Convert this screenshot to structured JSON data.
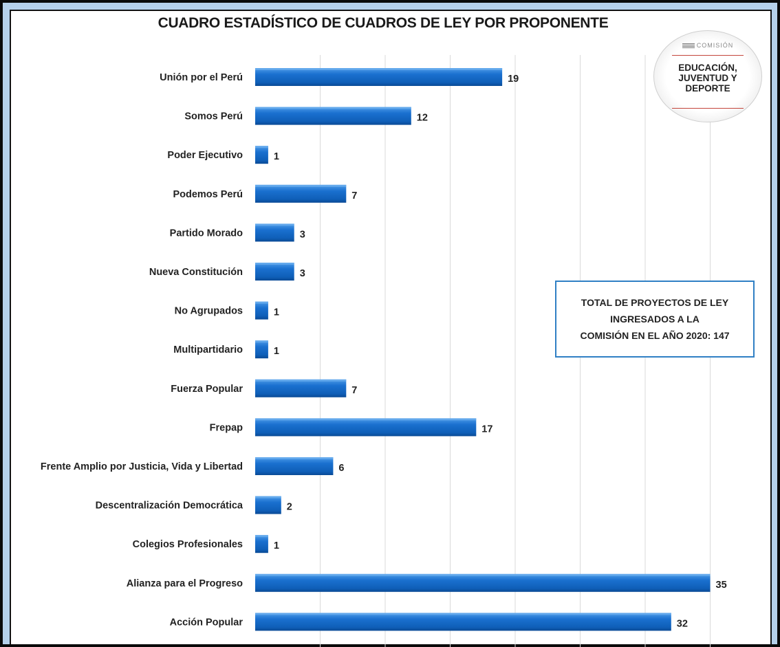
{
  "logo": {
    "top_text": "COMISIÓN",
    "line1": "EDUCACIÓN,",
    "line2": "JUVENTUD Y",
    "line3": "DEPORTE"
  },
  "total_box": {
    "line1": "TOTAL DE PROYECTOS DE LEY",
    "line2": "INGRESADOS A LA",
    "line3": "COMISIÓN EN EL AÑO 2020: 147"
  },
  "colors": {
    "bar_top": "#3f8fe0",
    "bar_main": "#1167c9",
    "bar_bottom": "#0a4a95",
    "frame_bg": "#b5d0ea",
    "box_border": "#2f7fc4"
  },
  "chart_data": {
    "type": "bar",
    "orientation": "horizontal",
    "title": "CUADRO ESTADÍSTICO DE CUADROS DE LEY POR PROPONENTE",
    "categories": [
      "Unión por el Perú",
      "Somos Perú",
      "Poder Ejecutivo",
      "Podemos Perú",
      "Partido Morado",
      "Nueva Constitución",
      "No Agrupados",
      "Multipartidario",
      "Fuerza Popular",
      "Frepap",
      "Frente Amplio por Justicia, Vida y Libertad",
      "Descentralización Democrática",
      "Colegios Profesionales",
      "Alianza para el Progreso",
      "Acción Popular"
    ],
    "values": [
      19,
      12,
      1,
      7,
      3,
      3,
      1,
      1,
      7,
      17,
      6,
      2,
      1,
      35,
      32
    ],
    "xlim": [
      0,
      38
    ],
    "grid": true,
    "data_labels": true,
    "legend": "none"
  }
}
